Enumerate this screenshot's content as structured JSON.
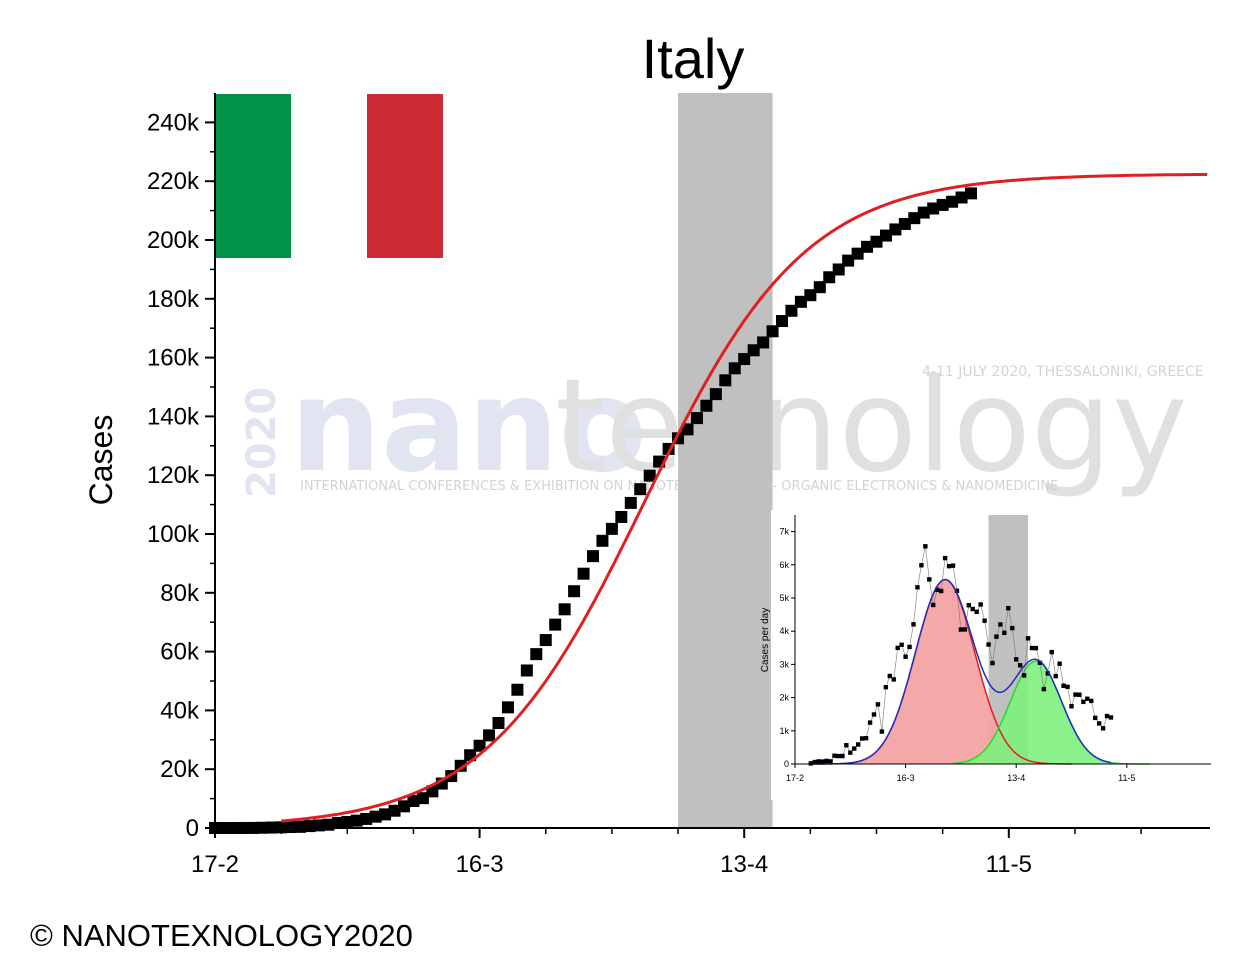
{
  "chart_data": [
    {
      "type": "scatter",
      "title": "Italy",
      "xlabel": "",
      "ylabel": "Cases",
      "x_ticks": [
        "17-2",
        "16-3",
        "13-4",
        "11-5"
      ],
      "x_tick_days": [
        0,
        28,
        56,
        84
      ],
      "xlim_days": [
        0,
        105
      ],
      "ylim": [
        0,
        250000
      ],
      "y_ticks": [
        0,
        20000,
        40000,
        60000,
        80000,
        100000,
        120000,
        140000,
        160000,
        180000,
        200000,
        220000,
        240000
      ],
      "y_tick_labels": [
        "0",
        "20k",
        "40k",
        "60k",
        "80k",
        "100k",
        "120k",
        "140k",
        "160k",
        "180k",
        "200k",
        "220k",
        "240k"
      ],
      "shaded_range_days": [
        49,
        59
      ],
      "shaded_color": "#c0c0c0",
      "series": [
        {
          "kind": "points",
          "marker": "square",
          "color": "#000000",
          "x_days": [
            0,
            1,
            2,
            3,
            4,
            5,
            6,
            7,
            8,
            9,
            10,
            11,
            12,
            13,
            14,
            15,
            16,
            17,
            18,
            19,
            20,
            21,
            22,
            23,
            24,
            25,
            26,
            27,
            28,
            29,
            30,
            31,
            32,
            33,
            34,
            35,
            36,
            37,
            38,
            39,
            40,
            41,
            42,
            43,
            44,
            45,
            46,
            47,
            48,
            49,
            50,
            51,
            52,
            53,
            54,
            55,
            56,
            57,
            58,
            59,
            60,
            61,
            62,
            63,
            64,
            65,
            66,
            67,
            68,
            69,
            70,
            71,
            72,
            73,
            74,
            75,
            76,
            77,
            78,
            79,
            80
          ],
          "values": [
            3,
            3,
            3,
            3,
            20,
            79,
            157,
            229,
            322,
            400,
            650,
            888,
            1128,
            1694,
            2036,
            2502,
            3089,
            3858,
            4636,
            5883,
            7375,
            9172,
            10149,
            12462,
            15113,
            17660,
            21157,
            24747,
            27980,
            31506,
            35713,
            41035,
            47021,
            53578,
            59138,
            63927,
            69176,
            74386,
            80539,
            86498,
            92472,
            97689,
            101739,
            105792,
            110574,
            115242,
            119827,
            124632,
            128948,
            132547,
            135586,
            139422,
            143626,
            147577,
            152271,
            156363,
            159516,
            162488,
            165155,
            168941,
            172434,
            175925,
            178972,
            181228,
            183957,
            187327,
            189973,
            192994,
            195351,
            197675,
            199414,
            201505,
            203591,
            205463,
            207428,
            209328,
            210717,
            211938,
            213013,
            214457,
            215858
          ]
        },
        {
          "kind": "fit",
          "color": "#e02020",
          "start_day": 7,
          "end_day": 105,
          "plateau": 222500
        }
      ]
    },
    {
      "type": "scatter",
      "title": "",
      "xlabel": "",
      "ylabel": "Cases per day",
      "x_ticks": [
        "17-2",
        "16-3",
        "13-4",
        "11-5"
      ],
      "x_tick_days": [
        0,
        28,
        56,
        84
      ],
      "xlim_days": [
        0,
        105
      ],
      "ylim": [
        0,
        7500
      ],
      "y_ticks": [
        0,
        1000,
        2000,
        3000,
        4000,
        5000,
        6000,
        7000
      ],
      "y_tick_labels": [
        "0",
        "1k",
        "2k",
        "3k",
        "4k",
        "5k",
        "6k",
        "7k"
      ],
      "shaded_range_days": [
        49,
        59
      ],
      "series": [
        {
          "kind": "points",
          "marker": "square",
          "color": "#000000",
          "x_days": [
            4,
            5,
            6,
            7,
            8,
            9,
            10,
            11,
            12,
            13,
            14,
            15,
            16,
            17,
            18,
            19,
            20,
            21,
            22,
            23,
            24,
            25,
            26,
            27,
            28,
            29,
            30,
            31,
            32,
            33,
            34,
            35,
            36,
            37,
            38,
            39,
            40,
            41,
            42,
            43,
            44,
            45,
            46,
            47,
            48,
            49,
            50,
            51,
            52,
            53,
            54,
            55,
            56,
            57,
            58,
            59,
            60,
            61,
            62,
            63,
            64,
            65,
            66,
            67,
            68,
            69,
            70,
            71,
            72,
            73,
            74,
            75,
            76,
            77,
            78,
            79,
            80
          ],
          "values": [
            17,
            59,
            78,
            72,
            93,
            78,
            250,
            238,
            240,
            566,
            342,
            466,
            587,
            769,
            778,
            1247,
            1492,
            1797,
            977,
            2313,
            2651,
            2547,
            3497,
            3590,
            3233,
            3526,
            4207,
            5322,
            5986,
            6557,
            5560,
            4789,
            5249,
            5210,
            6203,
            5959,
            5974,
            5217,
            4050,
            4053,
            4782,
            4668,
            4585,
            4805,
            4316,
            3599,
            3039,
            3836,
            4204,
            3951,
            4694,
            4092,
            3153,
            2972,
            2667,
            3786,
            3493,
            3491,
            3047,
            2256,
            2729,
            3370,
            2646,
            3021,
            2357,
            2324,
            1739,
            2091,
            2086,
            1872,
            1965,
            1900,
            1389,
            1221,
            1075,
            1444,
            1401
          ]
        },
        {
          "kind": "gaussian",
          "color": "#e02020",
          "fill": "#f4a3a3",
          "amplitude": 5550,
          "center_day": 38,
          "sigma": 7.5
        },
        {
          "kind": "gaussian",
          "color": "#22dd22",
          "fill": "#7ef07e",
          "amplitude": 3100,
          "center_day": 61,
          "sigma": 6.5
        },
        {
          "kind": "sum",
          "color": "#1f2fc0"
        }
      ]
    }
  ],
  "flag": {
    "colors": [
      "#009246",
      "#ffffff",
      "#ce2b37"
    ]
  },
  "watermark": {
    "year": "2020",
    "word_part1": "nano",
    "word_part2": "texnology",
    "tagline": "4-11 JULY 2020, THESSALONIKI, GREECE",
    "subtitle": "INTERNATIONAL CONFERENCES & EXHIBITION ON NANOTECHNOLOGIES - ORGANIC ELECTRONICS & NANOMEDICINE"
  },
  "copyright": "© NANOTEXNOLOGY2020"
}
